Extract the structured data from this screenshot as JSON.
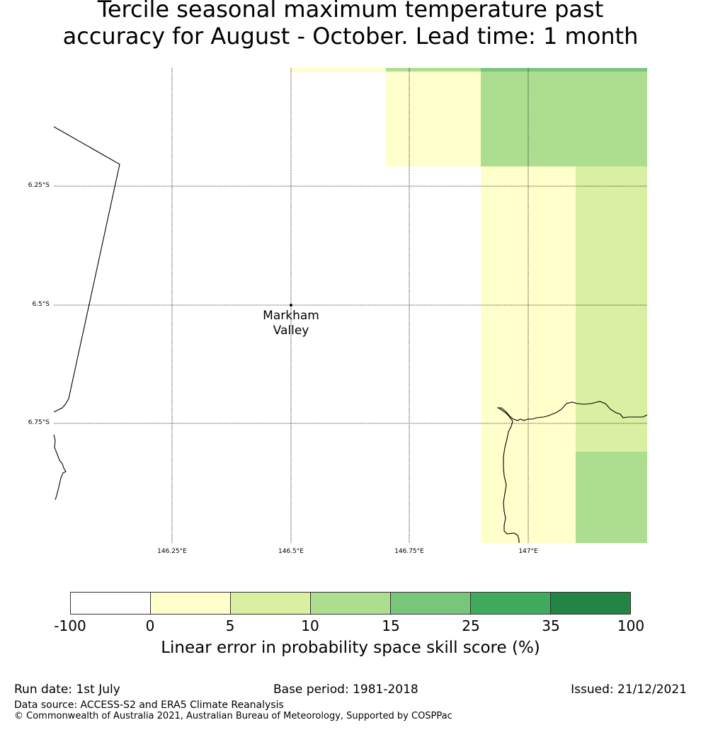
{
  "title": {
    "line1": "Tercile seasonal maximum temperature past",
    "line2": "accuracy for August - October. Lead time: 1 month"
  },
  "map": {
    "lat_labels": [
      "6.25°S",
      "6.5°S",
      "6.75°S"
    ],
    "lon_labels": [
      "146.25°E",
      "146.5°E",
      "146.75°E",
      "147°E"
    ],
    "place": {
      "name_line1": "Markham",
      "name_line2": "Valley"
    }
  },
  "legend": {
    "ticks": [
      "-100",
      "0",
      "5",
      "10",
      "15",
      "25",
      "35",
      "100"
    ],
    "colors": [
      "#ffffff",
      "#ffffcc",
      "#d9f0a3",
      "#addd8e",
      "#78c679",
      "#41ab5d",
      "#238443"
    ],
    "label": "Linear error in probability space skill score (%)"
  },
  "footer": {
    "run_date": "Run date: 1st July",
    "base_period": "Base period: 1981-2018",
    "issued": "Issued: 21/12/2021",
    "data_source": "Data source: ACCESS-S2 and ERA5 Climate Reanalysis",
    "copyright": "© Commonwealth of Australia 2021, Australian Bureau of Meteorology, Supported by COSPPac"
  }
}
